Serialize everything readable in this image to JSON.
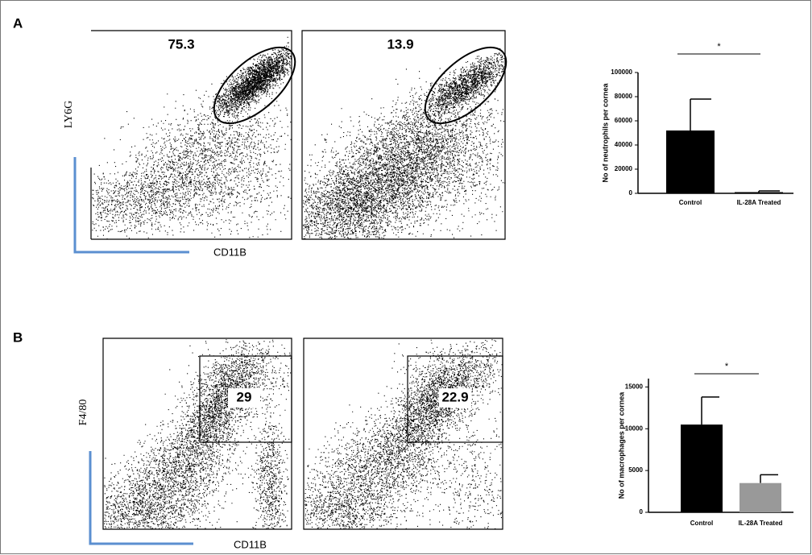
{
  "panels": [
    {
      "label": "A",
      "y_marker": "LY6G",
      "x_marker": "CD11B",
      "gates": [
        75.3,
        13.9
      ]
    },
    {
      "label": "B",
      "y_marker": "F4/80",
      "x_marker": "CD11B",
      "gates": [
        29,
        22.9
      ]
    }
  ],
  "chart_data": [
    {
      "type": "bar",
      "ylabel": "No of neutrophils per cornea",
      "categories": [
        "Control",
        "IL-28A Treated"
      ],
      "values": [
        52000,
        1000
      ],
      "errors": [
        26000,
        1000
      ],
      "colors": [
        "#000000",
        "#000000"
      ],
      "ylim": [
        0,
        100000
      ],
      "yticks": [
        0,
        20000,
        40000,
        60000,
        80000,
        100000
      ],
      "annotation": "*"
    },
    {
      "type": "bar",
      "ylabel": "No of macrophages per cornea",
      "categories": [
        "Control",
        "IL-28A Treated"
      ],
      "values": [
        10500,
        3500
      ],
      "errors": [
        3300,
        1000
      ],
      "colors": [
        "#000000",
        "#999999"
      ],
      "ylim": [
        0,
        16000
      ],
      "yticks": [
        0,
        5000,
        10000,
        15000
      ],
      "annotation": "*"
    }
  ]
}
